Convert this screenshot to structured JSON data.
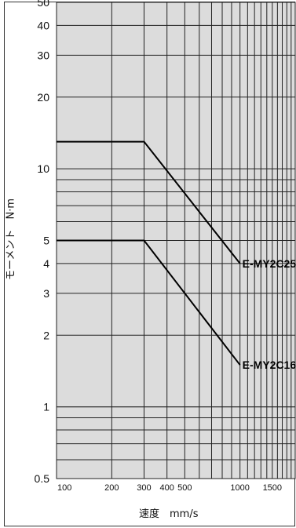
{
  "chart_data": {
    "type": "line",
    "xlabel": "速度　mm/s",
    "ylabel": "モーメント　N·m",
    "x_scale": "log",
    "y_scale": "log",
    "xlim": [
      100,
      2000
    ],
    "ylim": [
      0.5,
      50
    ],
    "grid": true,
    "x_ticks": [
      100,
      200,
      300,
      400,
      500,
      1000,
      1500
    ],
    "x_tick_labels": [
      "100",
      "200",
      "300",
      "400",
      "500",
      "1000",
      "1500"
    ],
    "y_ticks": [
      0.5,
      1,
      2,
      3,
      4,
      5,
      10,
      20,
      30,
      40,
      50
    ],
    "y_tick_labels": [
      "0.5",
      "1",
      "2",
      "3",
      "4",
      "5",
      "10",
      "20",
      "30",
      "40",
      "50"
    ],
    "series": [
      {
        "name": "E-MY2C25",
        "x": [
          100,
          300,
          1000
        ],
        "y": [
          13,
          13,
          4
        ]
      },
      {
        "name": "E-MY2C16",
        "x": [
          100,
          300,
          1000
        ],
        "y": [
          5,
          5,
          1.5
        ]
      }
    ]
  }
}
